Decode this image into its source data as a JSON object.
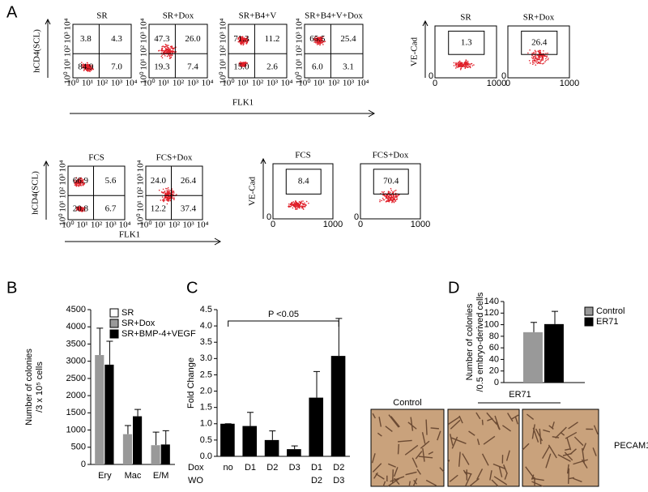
{
  "panel_labels": [
    "A",
    "B",
    "C",
    "D"
  ],
  "flow": {
    "log_tick_labels": [
      "10⁰",
      "10¹",
      "10²",
      "10³",
      "10⁴"
    ],
    "linear_tick_labels": [
      "0",
      "1000"
    ],
    "rows": [
      {
        "y_label": "hCD4(SCL)",
        "x_label": "FLK1",
        "plots": [
          {
            "title": "SR",
            "quadrants": [
              "3.8",
              "4.3",
              "84.9",
              "7.0"
            ]
          },
          {
            "title": "SR+Dox",
            "quadrants": [
              "47.3",
              "26.0",
              "19.3",
              "7.4"
            ]
          },
          {
            "title": "SR+B4+V",
            "quadrants": [
              "71.3",
              "11.2",
              "15.0",
              "2.6"
            ]
          },
          {
            "title": "SR+B4+V+Dox",
            "quadrants": [
              "65.5",
              "25.4",
              "6.0",
              "3.1"
            ]
          }
        ]
      },
      {
        "y_label": "VE-Cad",
        "plots": [
          {
            "title": "SR",
            "gate": "1.3"
          },
          {
            "title": "SR+Dox",
            "gate": "26.4"
          }
        ]
      },
      {
        "y_label": "hCD4(SCL)",
        "x_label": "FLK1",
        "plots": [
          {
            "title": "FCS",
            "quadrants": [
              "66.9",
              "5.6",
              "20.8",
              "6.7"
            ]
          },
          {
            "title": "FCS+Dox",
            "quadrants": [
              "24.0",
              "26.4",
              "12.2",
              "37.4"
            ]
          }
        ]
      },
      {
        "y_label": "VE-Cad",
        "plots": [
          {
            "title": "FCS",
            "gate": "8.4"
          },
          {
            "title": "FCS+Dox",
            "gate": "70.4"
          }
        ]
      }
    ]
  },
  "chart_data": [
    {
      "type": "bar",
      "y_label": [
        "Number of colonies",
        "/3 x 10⁵ cells"
      ],
      "categories": [
        "Ery",
        "Mac",
        "E/M"
      ],
      "series": [
        {
          "name": "SR",
          "color": "#ffffff",
          "values": [
            null,
            null,
            null
          ]
        },
        {
          "name": "SR+Dox",
          "color": "#999999",
          "values": [
            3180,
            880,
            560
          ],
          "errors": [
            780,
            250,
            380
          ]
        },
        {
          "name": "SR+BMP-4+VEGF",
          "color": "#000000",
          "values": [
            2900,
            1400,
            580
          ],
          "errors": [
            680,
            200,
            400
          ]
        }
      ],
      "ylim": [
        0,
        4500
      ],
      "yticks": [
        0,
        500,
        1000,
        1500,
        2000,
        2500,
        3000,
        3500,
        4000,
        4500
      ]
    },
    {
      "type": "bar",
      "y_label": [
        "Fold Change"
      ],
      "categories": [
        "no",
        "D1",
        "D2",
        "D3",
        "D1",
        "D2"
      ],
      "categories2": [
        null,
        null,
        null,
        null,
        "D2",
        "D3"
      ],
      "x_row_labels": [
        "Dox",
        "WO"
      ],
      "series": [
        {
          "color": "#000000",
          "values": [
            1.0,
            0.93,
            0.5,
            0.22,
            1.8,
            3.08
          ],
          "errors": [
            0,
            0.42,
            0.28,
            0.1,
            0.8,
            1.15
          ]
        }
      ],
      "ylim": [
        0,
        4.5
      ],
      "yticks": [
        {
          "value": 0,
          "label": "0.0"
        },
        0.5,
        {
          "value": 1,
          "label": "1.0"
        },
        1.5,
        {
          "value": 2,
          "label": "2.0"
        },
        2.5,
        {
          "value": 3,
          "label": "3.0"
        },
        3.5,
        {
          "value": 4,
          "label": "4.0"
        },
        4.5
      ],
      "annotation": "P <0.05"
    },
    {
      "type": "bar",
      "y_label": [
        "Number of colonies",
        "/0.5 embryo-derived cells"
      ],
      "categories": [
        null
      ],
      "series": [
        {
          "name": "Control",
          "color": "#999999",
          "values": [
            87
          ],
          "errors": [
            17
          ]
        },
        {
          "name": "ER71",
          "color": "#000000",
          "values": [
            101
          ],
          "errors": [
            22
          ]
        }
      ],
      "ylim": [
        0,
        140
      ],
      "yticks": [
        0,
        20,
        40,
        60,
        80,
        100,
        120,
        140
      ]
    }
  ],
  "images": {
    "labels": [
      "Control",
      "ER71"
    ],
    "stain": "PECAM1"
  }
}
